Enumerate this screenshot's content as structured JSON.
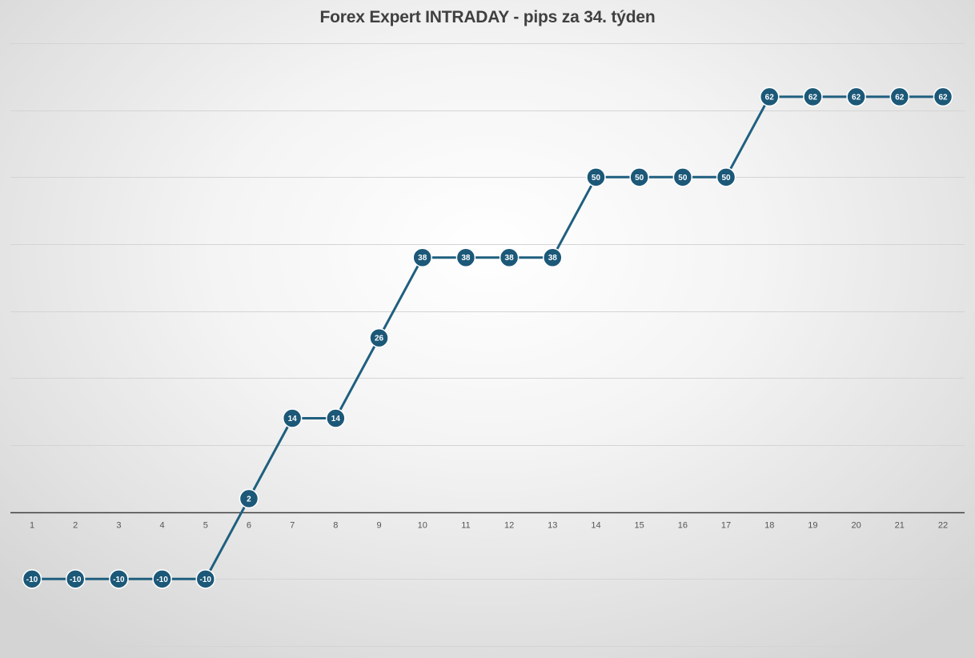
{
  "chart_data": {
    "type": "line",
    "title": "Forex Expert INTRADAY - pips za 34. týden",
    "xlabel": "",
    "ylabel": "",
    "categories": [
      "1",
      "2",
      "3",
      "4",
      "5",
      "6",
      "7",
      "8",
      "9",
      "10",
      "11",
      "12",
      "13",
      "14",
      "15",
      "16",
      "17",
      "18",
      "19",
      "20",
      "21",
      "22"
    ],
    "series": [
      {
        "values": [
          -10,
          -10,
          -10,
          -10,
          -10,
          2,
          14,
          14,
          26,
          38,
          38,
          38,
          38,
          50,
          50,
          50,
          50,
          62,
          62,
          62,
          62,
          62
        ]
      }
    ],
    "ylim": [
      -20,
      70
    ],
    "y_gridline_step": 10,
    "grid": true,
    "legend": "none",
    "data_labels": true
  },
  "colors": {
    "line": "#1f5f7f",
    "marker": "#1c5878",
    "grid": "#d4d4d4",
    "axis": "#404040",
    "title": "#404040"
  }
}
